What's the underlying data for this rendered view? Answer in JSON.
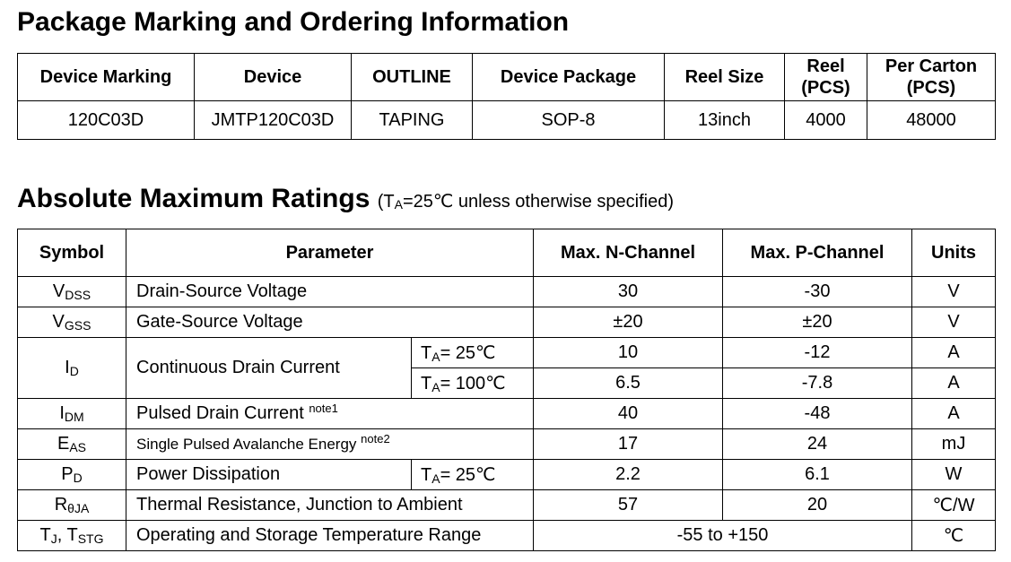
{
  "ordering": {
    "title": "Package Marking and Ordering Information",
    "headers": {
      "device_marking": "Device Marking",
      "device": "Device",
      "outline": "OUTLINE",
      "device_package": "Device Package",
      "reel_size": "Reel Size",
      "reel_pcs_1": "Reel",
      "reel_pcs_2": "(PCS)",
      "per_carton_1": "Per Carton",
      "per_carton_2": "(PCS)"
    },
    "row": {
      "device_marking": "120C03D",
      "device": "JMTP120C03D",
      "outline": "TAPING",
      "device_package": "SOP-8",
      "reel_size": "13inch",
      "reel_pcs": "4000",
      "per_carton": "48000"
    }
  },
  "ratings": {
    "title": "Absolute Maximum Ratings",
    "condition_open": "(T",
    "condition_sub": "A",
    "condition_rest": "=25℃ unless otherwise specified)",
    "headers": {
      "symbol": "Symbol",
      "parameter": "Parameter",
      "max_n": "Max. N-Channel",
      "max_p": "Max. P-Channel",
      "units": "Units"
    },
    "rows": {
      "vdss": {
        "sym": "V",
        "sub": "DSS",
        "param": "Drain-Source Voltage",
        "n": "30",
        "p": "-30",
        "unit": "V"
      },
      "vgss": {
        "sym": "V",
        "sub": "GSS",
        "param": "Gate-Source Voltage",
        "n": "±20",
        "p": "±20",
        "unit": "V"
      },
      "id": {
        "sym": "I",
        "sub": "D",
        "param": "Continuous Drain Current",
        "cond1_t": "T",
        "cond1_sub": "A",
        "cond1_val": "= 25℃",
        "n1": "10",
        "p1": "-12",
        "unit1": "A",
        "cond2_t": "T",
        "cond2_sub": "A",
        "cond2_val": "= 100℃",
        "n2": "6.5",
        "p2": "-7.8",
        "unit2": "A"
      },
      "idm": {
        "sym": "I",
        "sub": "DM",
        "param": "Pulsed Drain Current ",
        "note": "note1",
        "n": "40",
        "p": "-48",
        "unit": "A"
      },
      "eas": {
        "sym": "E",
        "sub": "AS",
        "param": "Single Pulsed Avalanche Energy ",
        "note": "note2",
        "n": "17",
        "p": "24",
        "unit": "mJ"
      },
      "pd": {
        "sym": "P",
        "sub": "D",
        "param": "Power Dissipation",
        "cond_t": "T",
        "cond_sub": "A",
        "cond_val": "= 25℃",
        "n": "2.2",
        "p": "6.1",
        "unit": "W"
      },
      "rthja": {
        "sym": "R",
        "sub": "θJA",
        "param": "Thermal Resistance, Junction to Ambient",
        "n": "57",
        "p": "20",
        "unit": "℃/W"
      },
      "tj": {
        "sym1": "T",
        "sub1": "J",
        "sep": ", ",
        "sym2": "T",
        "sub2": "STG",
        "param": "Operating and Storage Temperature Range",
        "range": "-55 to +150",
        "unit": "℃"
      }
    }
  }
}
